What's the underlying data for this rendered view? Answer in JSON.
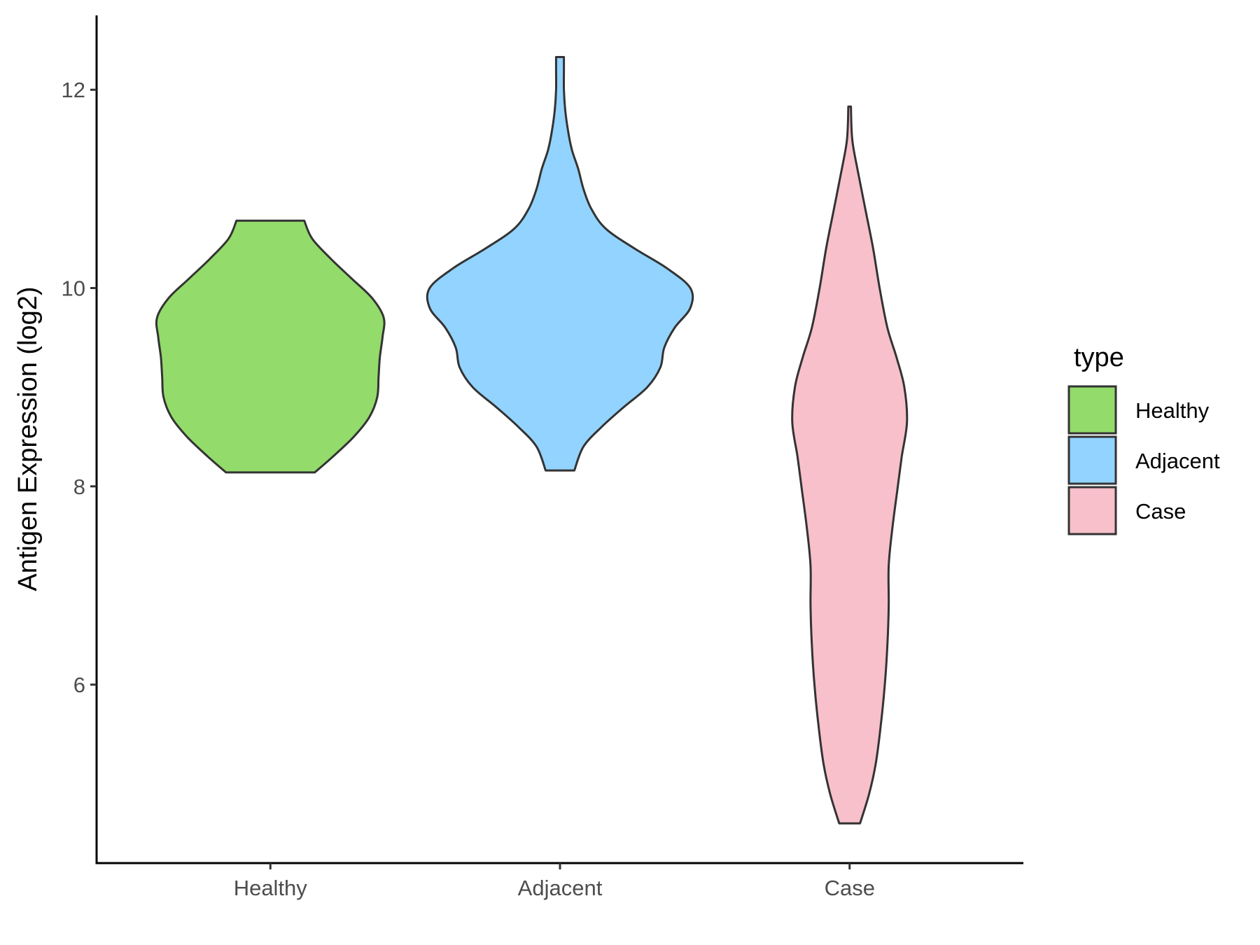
{
  "chart_data": {
    "type": "violin",
    "title": "",
    "xlabel": "",
    "ylabel": "Antigen Expression (log2)",
    "categories": [
      "Healthy",
      "Adjacent",
      "Case"
    ],
    "yticks": [
      6,
      8,
      10,
      12
    ],
    "ylim": [
      4.2,
      12.75
    ],
    "grid": false,
    "legend": {
      "title": "type",
      "position": "right",
      "entries": [
        "Healthy",
        "Adjacent",
        "Case"
      ]
    },
    "series": [
      {
        "name": "Healthy",
        "color": "#93DB6B",
        "min": 8.14,
        "max": 10.68,
        "density_profile": [
          [
            8.14,
            0.34
          ],
          [
            8.3,
            0.48
          ],
          [
            8.5,
            0.64
          ],
          [
            8.7,
            0.76
          ],
          [
            8.9,
            0.82
          ],
          [
            9.1,
            0.83
          ],
          [
            9.3,
            0.84
          ],
          [
            9.5,
            0.86
          ],
          [
            9.7,
            0.87
          ],
          [
            9.9,
            0.78
          ],
          [
            10.1,
            0.62
          ],
          [
            10.3,
            0.46
          ],
          [
            10.5,
            0.32
          ],
          [
            10.68,
            0.26
          ]
        ]
      },
      {
        "name": "Adjacent",
        "color": "#92D3FF",
        "min": 8.16,
        "max": 12.33,
        "density_profile": [
          [
            8.16,
            0.11
          ],
          [
            8.4,
            0.18
          ],
          [
            8.6,
            0.32
          ],
          [
            8.8,
            0.49
          ],
          [
            9.0,
            0.67
          ],
          [
            9.2,
            0.77
          ],
          [
            9.4,
            0.8
          ],
          [
            9.6,
            0.88
          ],
          [
            9.8,
            1.0
          ],
          [
            10.0,
            1.0
          ],
          [
            10.2,
            0.82
          ],
          [
            10.4,
            0.57
          ],
          [
            10.6,
            0.35
          ],
          [
            10.8,
            0.24
          ],
          [
            11.0,
            0.18
          ],
          [
            11.2,
            0.14
          ],
          [
            11.4,
            0.09
          ],
          [
            11.6,
            0.06
          ],
          [
            11.8,
            0.04
          ],
          [
            12.0,
            0.03
          ],
          [
            12.2,
            0.03
          ],
          [
            12.33,
            0.03
          ]
        ]
      },
      {
        "name": "Case",
        "color": "#F7C0CB",
        "min": 4.6,
        "max": 11.83,
        "density_profile": [
          [
            4.6,
            0.08
          ],
          [
            4.9,
            0.15
          ],
          [
            5.2,
            0.2
          ],
          [
            5.6,
            0.24
          ],
          [
            6.0,
            0.27
          ],
          [
            6.4,
            0.29
          ],
          [
            6.8,
            0.3
          ],
          [
            7.2,
            0.3
          ],
          [
            7.6,
            0.33
          ],
          [
            8.0,
            0.37
          ],
          [
            8.3,
            0.4
          ],
          [
            8.65,
            0.44
          ],
          [
            9.0,
            0.42
          ],
          [
            9.3,
            0.36
          ],
          [
            9.6,
            0.29
          ],
          [
            10.0,
            0.23
          ],
          [
            10.4,
            0.18
          ],
          [
            10.8,
            0.12
          ],
          [
            11.2,
            0.06
          ],
          [
            11.5,
            0.02
          ],
          [
            11.83,
            0.01
          ]
        ]
      }
    ]
  }
}
